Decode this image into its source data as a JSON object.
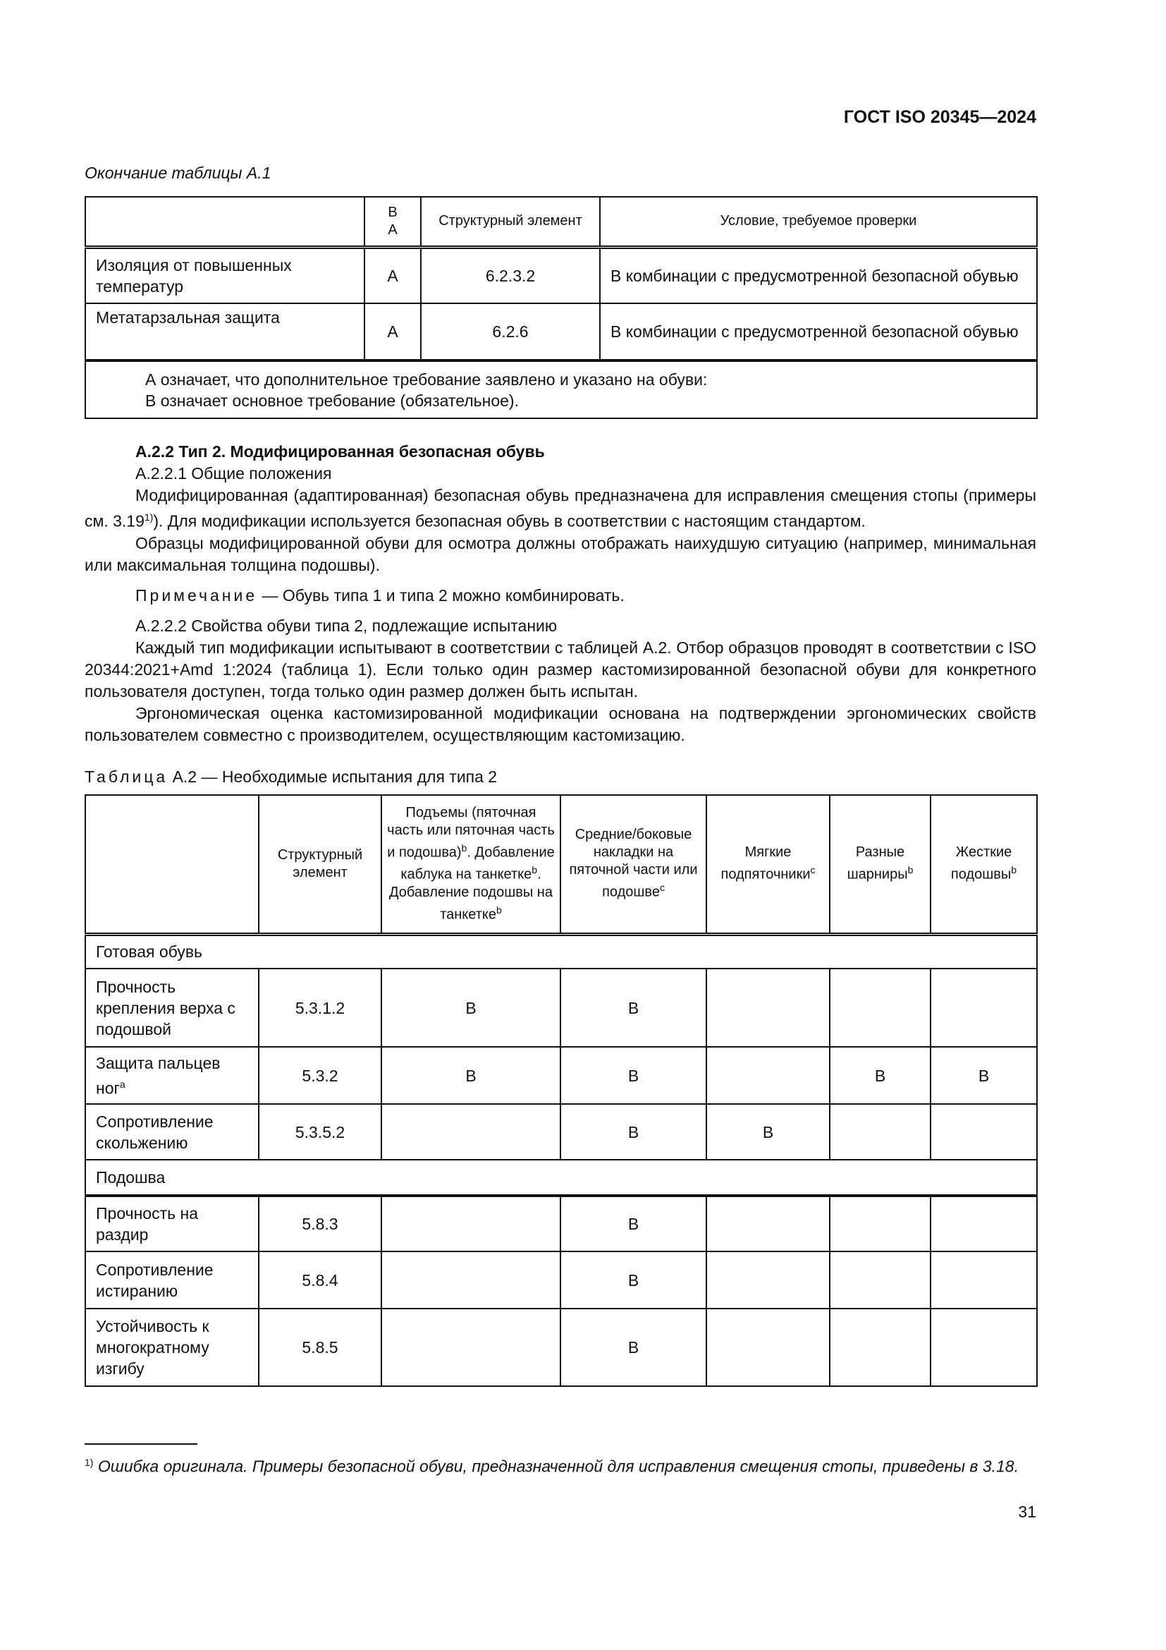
{
  "header": "ГОСТ ISO 20345—2024",
  "table1": {
    "caption": "Окончание таблицы А.1",
    "headers": [
      "",
      "В\nА",
      "Структурный элемент",
      "Условие, требуемое проверки"
    ],
    "rows": [
      [
        "Изоляция от повышенных температур",
        "А",
        "6.2.3.2",
        "В комбинации с предусмотренной безопасной обувью"
      ],
      [
        "Метатарзальная защита",
        "А",
        "6.2.6",
        "В комбинации с предусмотренной безопасной обувью"
      ]
    ],
    "note1": "А означает, что дополнительное требование заявлено и указано на обуви:",
    "note2": "В означает основное требование (обязательное)."
  },
  "body": {
    "h1": "А.2.2 Тип 2. Модифицированная безопасная обувь",
    "h2": "А.2.2.1 Общие положения",
    "p1a": "Модифицированная (адаптированная) безопасная обувь предназначена для исправления смещения стопы (примеры см. 3.19",
    "p1sup": "1)",
    "p1b": "). Для модификации используется безопасная обувь в соответствии с настоящим стандартом.",
    "p2": "Образцы модифицированной обуви для осмотра должны отображать наихудшую ситуацию (например, минимальная или максимальная толщина подошвы).",
    "note_label": "Примечание",
    "note_text": " — Обувь типа 1 и типа 2 можно комбинировать.",
    "h3": "А.2.2.2 Свойства обуви типа 2, подлежащие испытанию",
    "p3": "Каждый тип модификации испытывают в соответствии с таблицей А.2. Отбор образцов проводят в соответствии с ISO 20344:2021+Amd 1:2024 (таблица 1). Если только один размер кастомизированной безопасной обуви для конкретного пользователя доступен, тогда только один размер должен быть испытан.",
    "p4": "Эргономическая оценка кастомизированной модификации основана на подтверждении эргономических свойств пользователем совместно с производителем, осуществляющим кастомизацию."
  },
  "table2": {
    "caption_label": "Таблица",
    "caption_text": " А.2 — Необходимые испытания для типа 2",
    "headers": [
      "",
      "Структурный элемент",
      "Подъемы (пяточная часть или пяточная часть и подошва)|b|. Добавление каблука на танкетке|b|. Добавление подошвы на танкетке|b|",
      "Средние/боковые накладки на пяточной части или подошве|c|",
      "Мягкие подпяточники|c|",
      "Разные шарниры|b|",
      "Жесткие подошвы|b|"
    ],
    "sections": [
      {
        "title": "Готовая обувь",
        "rows": [
          [
            "Прочность крепления верха с подошвой",
            "5.3.1.2",
            "В",
            "В",
            "",
            "",
            ""
          ],
          [
            "Защита пальцев ног|a|",
            "5.3.2",
            "В",
            "В",
            "",
            "В",
            "В"
          ],
          [
            "Сопротивление скольжению",
            "5.3.5.2",
            "",
            "В",
            "В",
            "",
            ""
          ]
        ]
      },
      {
        "title": "Подошва",
        "rows": [
          [
            "Прочность на раздир",
            "5.8.3",
            "",
            "В",
            "",
            "",
            ""
          ],
          [
            "Сопротивление истиранию",
            "5.8.4",
            "",
            "В",
            "",
            "",
            ""
          ],
          [
            "Устойчивость к многократному изгибу",
            "5.8.5",
            "",
            "В",
            "",
            "",
            ""
          ]
        ]
      }
    ]
  },
  "footnote": {
    "sup": "1)",
    "text": " Ошибка оригинала. Примеры безопасной обуви, предназначенной для исправления смещения стопы, приведены в 3.18."
  },
  "page_number": "31"
}
